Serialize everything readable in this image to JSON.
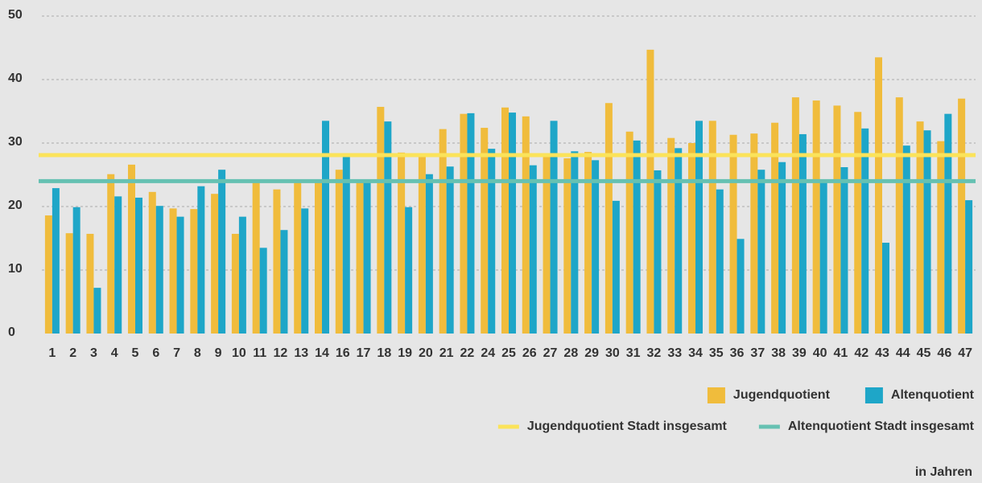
{
  "chart_data": {
    "type": "bar",
    "categories": [
      "1",
      "2",
      "3",
      "4",
      "5",
      "6",
      "7",
      "8",
      "9",
      "10",
      "11",
      "12",
      "13",
      "14",
      "16",
      "17",
      "18",
      "19",
      "20",
      "21",
      "22",
      "24",
      "25",
      "26",
      "27",
      "28",
      "29",
      "30",
      "31",
      "32",
      "33",
      "34",
      "35",
      "36",
      "37",
      "38",
      "39",
      "40",
      "41",
      "42",
      "43",
      "44",
      "45",
      "46",
      "47"
    ],
    "series": [
      {
        "name": "Jugendquotient",
        "color": "#f0bc3c",
        "values": [
          18.6,
          15.8,
          15.7,
          25.1,
          26.6,
          22.3,
          19.7,
          19.6,
          22.0,
          15.7,
          23.9,
          22.7,
          23.9,
          24.0,
          25.8,
          24.2,
          35.7,
          28.5,
          27.9,
          32.2,
          34.6,
          32.4,
          35.6,
          34.2,
          28.0,
          27.6,
          28.6,
          36.3,
          31.8,
          44.7,
          30.8,
          30.0,
          33.5,
          31.3,
          31.5,
          33.2,
          37.2,
          36.7,
          35.9,
          34.9,
          43.5,
          37.2,
          33.4,
          30.3,
          37.0
        ]
      },
      {
        "name": "Altenquotient",
        "color": "#1ea6c8",
        "values": [
          22.9,
          19.9,
          7.2,
          21.6,
          21.4,
          20.1,
          18.4,
          23.2,
          25.8,
          18.4,
          13.5,
          16.3,
          19.7,
          33.5,
          28.4,
          24.0,
          33.4,
          19.9,
          25.1,
          26.3,
          34.7,
          29.1,
          34.8,
          26.5,
          33.5,
          28.7,
          27.3,
          20.9,
          30.4,
          25.7,
          29.2,
          33.5,
          22.7,
          14.9,
          25.8,
          27.0,
          31.4,
          23.9,
          26.2,
          32.3,
          14.3,
          29.6,
          32.0,
          34.6,
          21.0
        ]
      }
    ],
    "reference_lines": [
      {
        "name": "Jugendquotient Stadt insgesamt",
        "color": "#fbe35a",
        "value": 28.1
      },
      {
        "name": "Altenquotient Stadt insgesamt",
        "color": "#66c1b2",
        "value": 24.0
      }
    ],
    "ylim": [
      0,
      50
    ],
    "yticks": [
      0,
      10,
      20,
      30,
      40,
      50
    ],
    "grid": true,
    "annotation": "in Jahren"
  }
}
